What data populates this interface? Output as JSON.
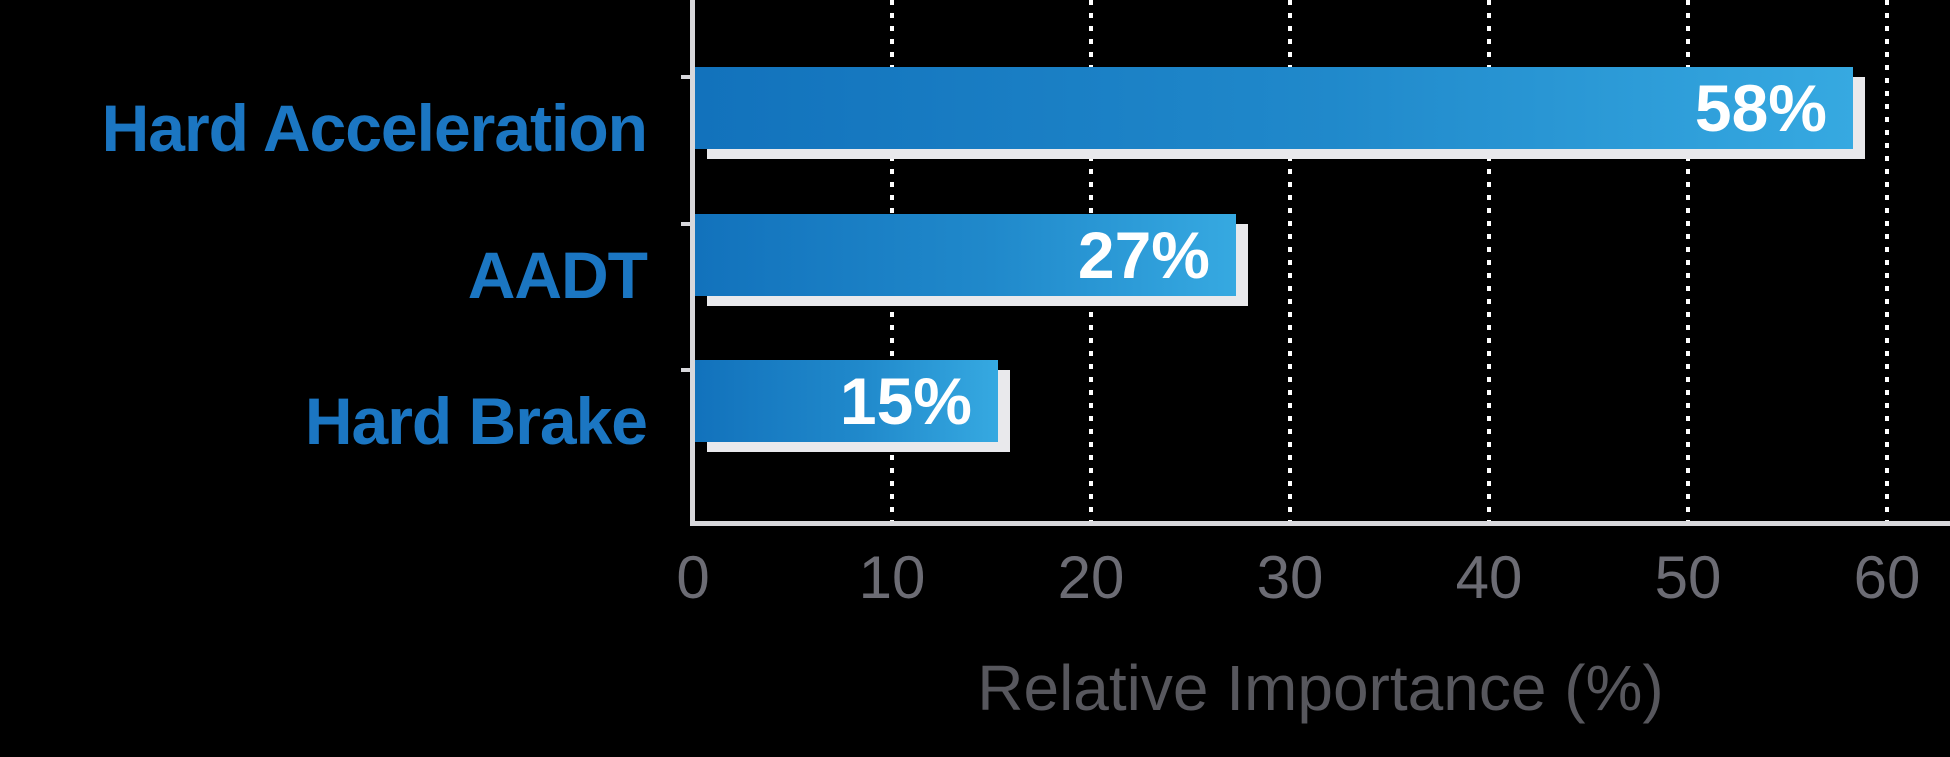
{
  "chart_data": {
    "type": "bar",
    "orientation": "horizontal",
    "title": "",
    "categories": [
      "Hard Acceleration",
      "AADT",
      "Hard Brake"
    ],
    "values": [
      58,
      27,
      15
    ],
    "value_labels": [
      "58%",
      "27%",
      "15%"
    ],
    "xlabel": "Relative Importance (%)",
    "ylabel": "",
    "x_ticks": [
      0,
      10,
      20,
      30,
      40,
      50,
      60
    ],
    "xlim": [
      0,
      63
    ],
    "grid": "vertical-dotted-white",
    "legend": "none",
    "colors": {
      "background": "#000000",
      "bar_gradient_start": "#1272bc",
      "bar_gradient_end": "#36a9e1",
      "bar_shadow": "#e9e9ec",
      "axis_line": "#d8d8dc",
      "gridline": "#ffffff",
      "category_label": "#1b76c2",
      "tick_label": "#6c6c74",
      "axis_title": "#57575d",
      "value_label": "#ffffff"
    }
  }
}
